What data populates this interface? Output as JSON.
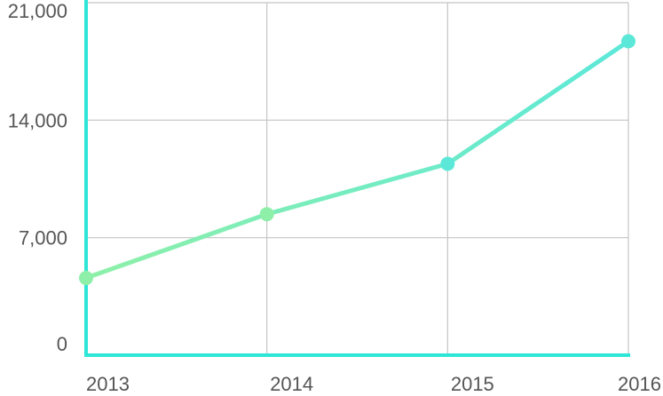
{
  "chart_data": {
    "type": "line",
    "title": "",
    "xlabel": "",
    "ylabel": "",
    "categories": [
      "2013",
      "2014",
      "2015",
      "2016"
    ],
    "x_tick_labels": [
      "2013",
      "2014",
      "2015",
      "2016"
    ],
    "y_tick_values": [
      0,
      7000,
      14000,
      21000
    ],
    "y_tick_labels": [
      "0",
      "7,000",
      "14,000",
      "21,000"
    ],
    "ylim": [
      0,
      21000
    ],
    "grid": true,
    "legend": "none",
    "series": [
      {
        "values": [
          4600,
          8400,
          11400,
          18700
        ]
      }
    ],
    "colors": {
      "axis": "#2ee6d6",
      "grid": "#c4c4c4",
      "line_start": "#8ef0a8",
      "line_end": "#5ce8d9",
      "tick_text": "#555555"
    }
  }
}
